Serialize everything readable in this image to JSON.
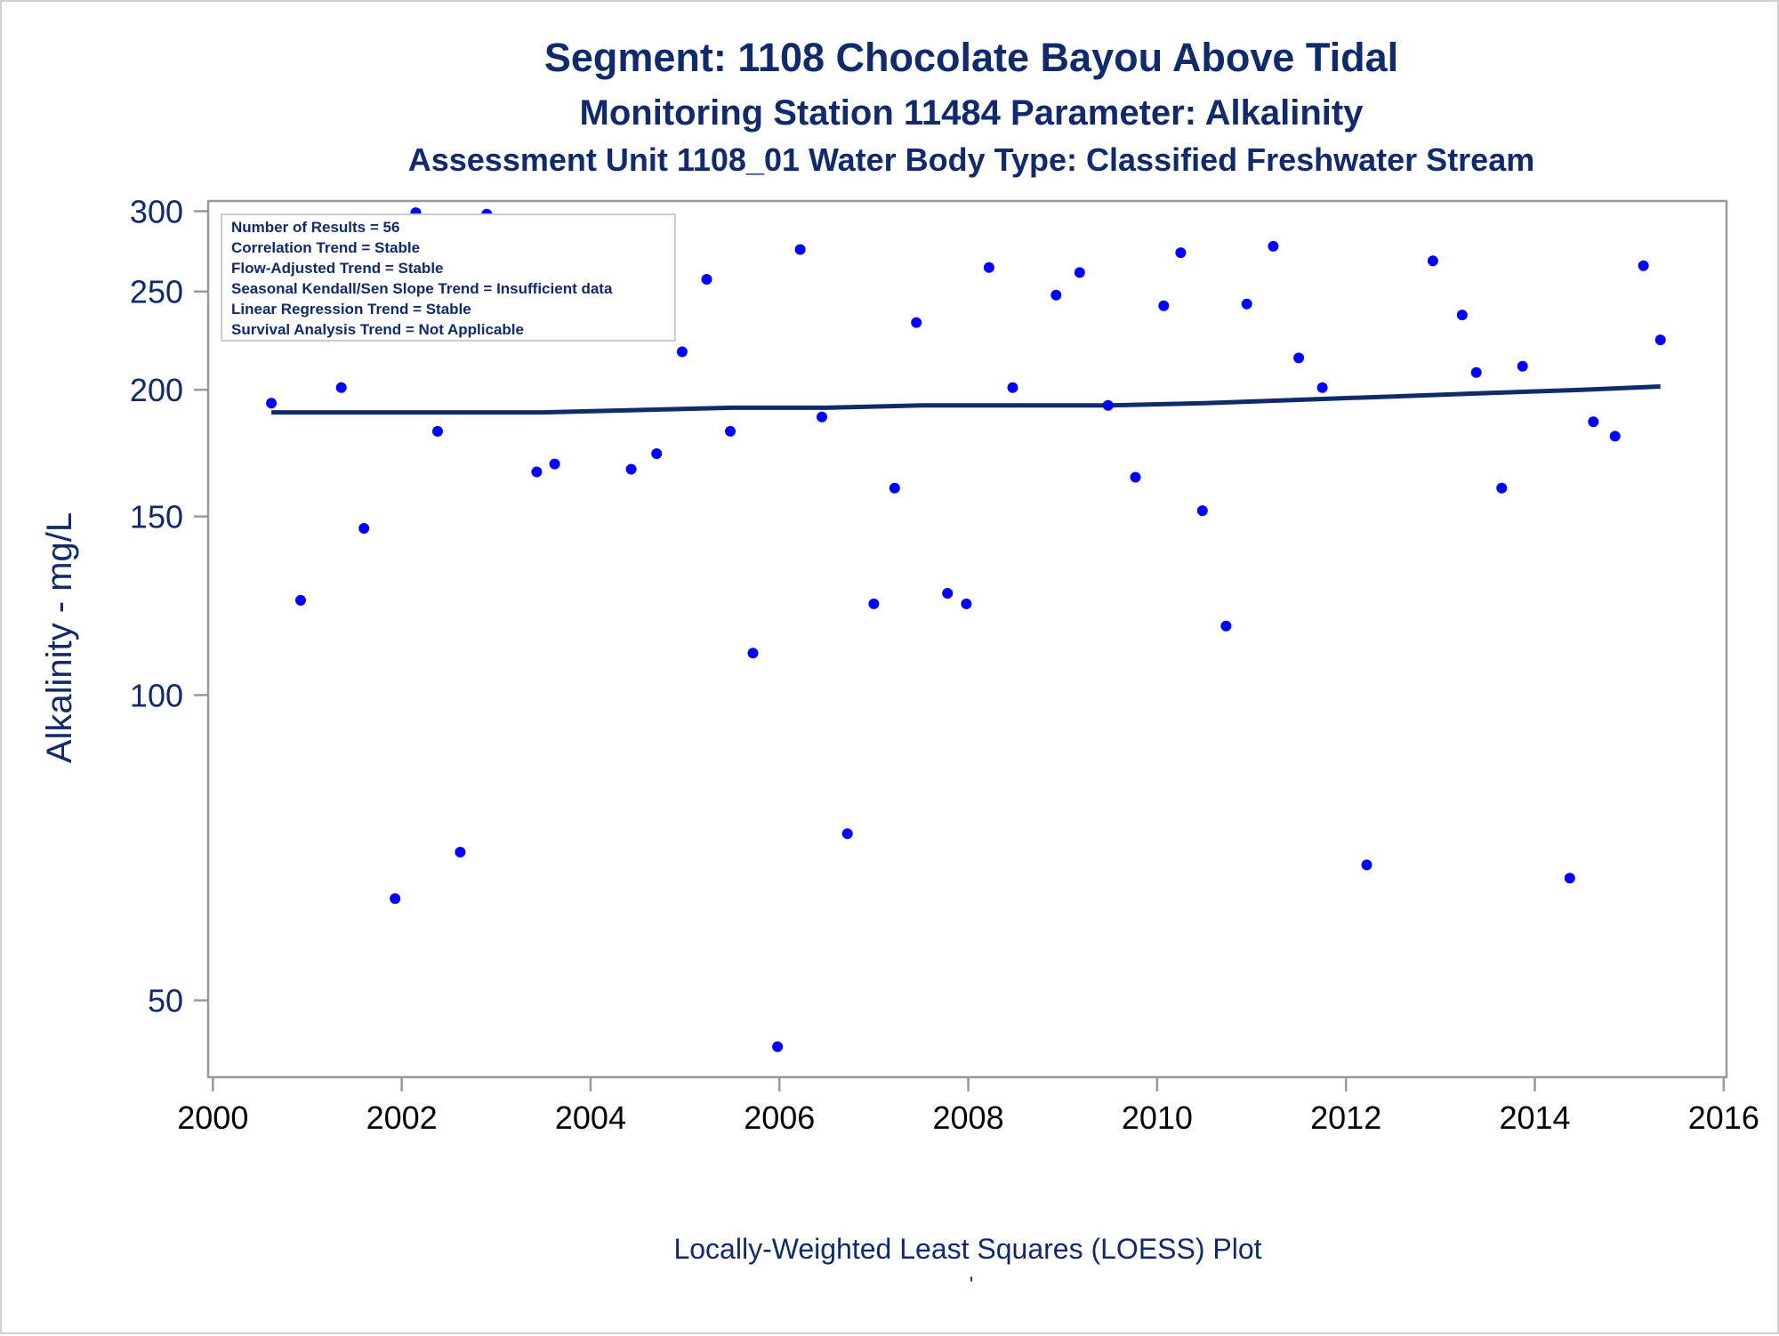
{
  "page": {
    "titles": [
      "Segment: 1108  Chocolate Bayou Above Tidal",
      "Monitoring Station 11484 Parameter: Alkalinity",
      "Assessment Unit 1108_01   Water Body Type: Classified Freshwater Stream"
    ],
    "footnote": "Locally-Weighted Least Squares (LOESS) Plot",
    "footnote_mark": "'"
  },
  "stats_box": {
    "lines": [
      "Number of Results = 56",
      "Correlation Trend = Stable",
      "Flow-Adjusted Trend = Stable",
      "Seasonal Kendall/Sen Slope Trend = Insufficient data",
      "Linear Regression Trend = Stable",
      "Survival Analysis Trend = Not Applicable"
    ]
  },
  "chart_data": {
    "type": "scatter",
    "title": "Segment: 1108  Chocolate Bayou Above Tidal",
    "xlabel": "",
    "ylabel": "Alkalinity - mg/L",
    "y_scale": "log",
    "xlim": [
      1999.95,
      2016.03
    ],
    "ylim": [
      42,
      307
    ],
    "x_ticks": [
      2000,
      2002,
      2004,
      2006,
      2008,
      2010,
      2012,
      2014,
      2016
    ],
    "y_ticks": [
      50,
      100,
      150,
      200,
      250,
      300
    ],
    "grid": false,
    "point_color": "#0000ff",
    "line_color": "#102a6b",
    "series": [
      {
        "kind": "points",
        "points": [
          [
            2000.62,
            194
          ],
          [
            2000.93,
            124
          ],
          [
            2001.12,
            272
          ],
          [
            2001.36,
            201
          ],
          [
            2001.6,
            146
          ],
          [
            2001.93,
            63
          ],
          [
            2002.15,
            299
          ],
          [
            2002.38,
            182
          ],
          [
            2002.62,
            70
          ],
          [
            2002.9,
            298
          ],
          [
            2003.12,
            235
          ],
          [
            2003.43,
            166
          ],
          [
            2003.62,
            169
          ],
          [
            2003.82,
            229
          ],
          [
            2003.95,
            281
          ],
          [
            2004.2,
            271
          ],
          [
            2004.43,
            167
          ],
          [
            2004.7,
            173
          ],
          [
            2004.97,
            218
          ],
          [
            2005.23,
            257
          ],
          [
            2005.48,
            182
          ],
          [
            2005.72,
            110
          ],
          [
            2005.98,
            45
          ],
          [
            2006.22,
            275
          ],
          [
            2006.45,
            188
          ],
          [
            2006.72,
            73
          ],
          [
            2007.0,
            123
          ],
          [
            2007.22,
            160
          ],
          [
            2007.45,
            233
          ],
          [
            2007.78,
            126
          ],
          [
            2007.98,
            123
          ],
          [
            2008.22,
            264
          ],
          [
            2008.47,
            201
          ],
          [
            2008.93,
            248
          ],
          [
            2009.18,
            261
          ],
          [
            2009.48,
            193
          ],
          [
            2009.77,
            164
          ],
          [
            2010.07,
            242
          ],
          [
            2010.25,
            273
          ],
          [
            2010.48,
            152
          ],
          [
            2010.73,
            117
          ],
          [
            2010.95,
            243
          ],
          [
            2011.23,
            277
          ],
          [
            2011.5,
            215
          ],
          [
            2011.75,
            201
          ],
          [
            2012.22,
            68
          ],
          [
            2012.92,
            268
          ],
          [
            2013.23,
            237
          ],
          [
            2013.38,
            208
          ],
          [
            2013.65,
            160
          ],
          [
            2013.87,
            211
          ],
          [
            2014.37,
            66
          ],
          [
            2014.62,
            186
          ],
          [
            2014.85,
            180
          ],
          [
            2015.15,
            265
          ],
          [
            2015.33,
            224
          ]
        ]
      },
      {
        "kind": "line",
        "name": "LOESS",
        "points": [
          [
            2000.62,
            190
          ],
          [
            2001.5,
            190
          ],
          [
            2002.5,
            190
          ],
          [
            2003.5,
            190
          ],
          [
            2004.5,
            191
          ],
          [
            2005.5,
            192
          ],
          [
            2006.5,
            192
          ],
          [
            2007.5,
            193
          ],
          [
            2008.5,
            193
          ],
          [
            2009.5,
            193
          ],
          [
            2010.5,
            194
          ],
          [
            2011.5,
            195.5
          ],
          [
            2012.5,
            197
          ],
          [
            2013.5,
            198.5
          ],
          [
            2014.5,
            200
          ],
          [
            2015.33,
            201.5
          ]
        ]
      }
    ]
  }
}
